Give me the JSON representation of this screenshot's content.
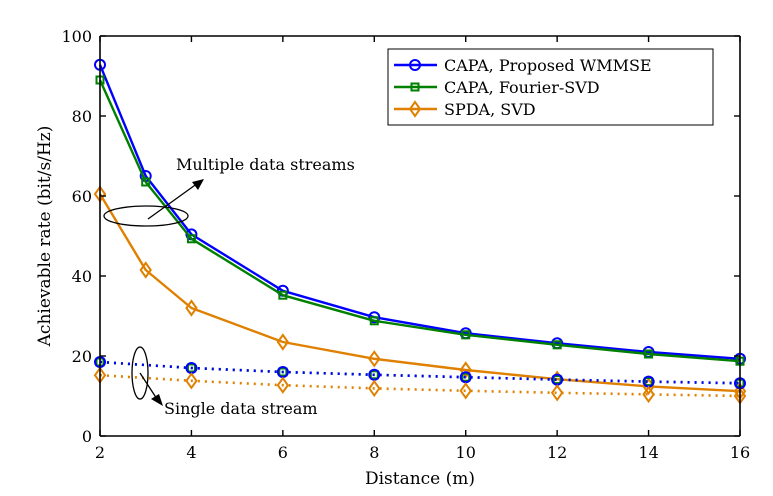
{
  "chart_data": {
    "type": "line",
    "title": "",
    "xlabel": "Distance (m)",
    "ylabel": "Achievable rate (bit/s/Hz)",
    "xlim": [
      2,
      16
    ],
    "ylim": [
      0,
      100
    ],
    "xticks": [
      2,
      4,
      6,
      8,
      10,
      12,
      14,
      16
    ],
    "yticks": [
      0,
      20,
      40,
      60,
      80,
      100
    ],
    "grid": false,
    "legend_position": "top-right",
    "series": [
      {
        "name": "CAPA, Proposed WMMSE",
        "color": "#0000ff",
        "marker": "circle",
        "style": "solid",
        "in_legend": true,
        "x": [
          2,
          3,
          4,
          6,
          8,
          10,
          12,
          14,
          16
        ],
        "y": [
          92.8,
          65.0,
          50.4,
          36.3,
          29.7,
          25.7,
          23.2,
          21.0,
          19.3
        ]
      },
      {
        "name": "CAPA, Fourier-SVD",
        "color": "#008000",
        "marker": "square",
        "style": "solid",
        "in_legend": true,
        "x": [
          2,
          3,
          4,
          6,
          8,
          10,
          12,
          14,
          16
        ],
        "y": [
          89.0,
          63.5,
          49.3,
          35.2,
          28.8,
          25.3,
          22.8,
          20.5,
          18.7
        ]
      },
      {
        "name": "SPDA, SVD",
        "color": "#e08000",
        "marker": "diamond",
        "style": "solid",
        "in_legend": true,
        "x": [
          2,
          3,
          4,
          6,
          8,
          10,
          12,
          14,
          16
        ],
        "y": [
          60.5,
          41.5,
          32.0,
          23.5,
          19.3,
          16.5,
          14.2,
          12.4,
          11.2
        ]
      },
      {
        "name": "CAPA, Fourier-SVD (single stream)",
        "color": "#008000",
        "marker": "square",
        "style": "dotted",
        "in_legend": false,
        "x": [
          2,
          4,
          6,
          8,
          10,
          12,
          14,
          16
        ],
        "y": [
          18.5,
          17.0,
          16.0,
          15.3,
          14.7,
          14.1,
          13.6,
          13.2
        ]
      },
      {
        "name": "CAPA, Proposed WMMSE (single stream)",
        "color": "#0000ff",
        "marker": "circle",
        "style": "dotted",
        "in_legend": false,
        "x": [
          2,
          4,
          6,
          8,
          10,
          12,
          14,
          16
        ],
        "y": [
          18.5,
          17.0,
          16.0,
          15.3,
          14.7,
          14.1,
          13.6,
          13.2
        ]
      },
      {
        "name": "SPDA, SVD (single stream)",
        "color": "#e08000",
        "marker": "diamond",
        "style": "dotted",
        "in_legend": false,
        "x": [
          2,
          4,
          6,
          8,
          10,
          12,
          14,
          16
        ],
        "y": [
          15.2,
          13.8,
          12.7,
          11.9,
          11.3,
          10.8,
          10.4,
          10.0
        ]
      }
    ],
    "annotations": [
      {
        "text": "Multiple data streams",
        "target_x": 3.5,
        "target_y": 56
      },
      {
        "text": "Single data stream",
        "target_x": 2.8,
        "target_y": 17
      }
    ]
  }
}
